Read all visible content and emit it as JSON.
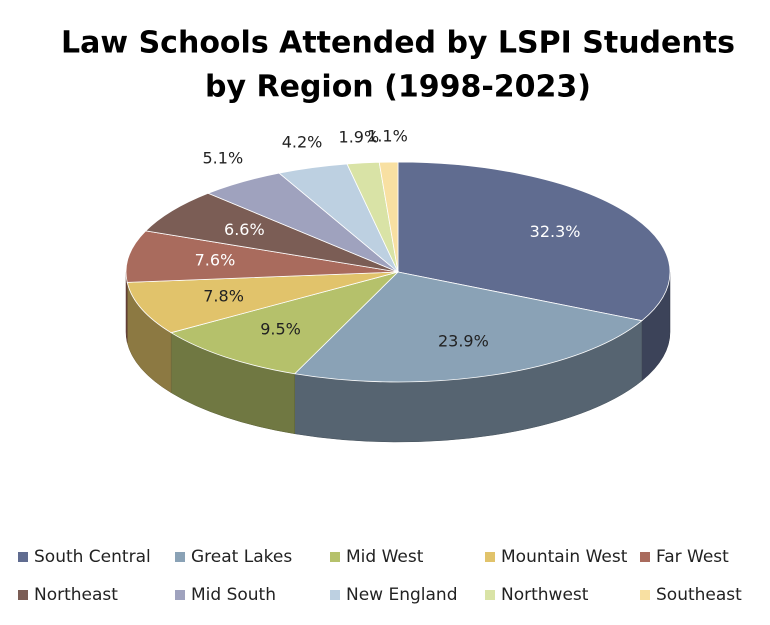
{
  "chart_data": {
    "type": "pie",
    "title": [
      "Law Schools Attended by LSPI Students",
      "by Region (1998-2023)"
    ],
    "categories": [
      "South Central",
      "Great Lakes",
      "Mid West",
      "Mountain West",
      "Far West",
      "Northeast",
      "Mid South",
      "New England",
      "Northwest",
      "Southeast"
    ],
    "values": [
      32.3,
      23.9,
      9.5,
      7.8,
      7.6,
      6.6,
      5.1,
      4.2,
      1.9,
      1.1
    ],
    "value_labels": [
      "32.3%",
      "23.9%",
      "9.5%",
      "7.8%",
      "7.6%",
      "6.6%",
      "5.1%",
      "4.2%",
      "1.9%",
      "1.1%"
    ],
    "colors": [
      "#606c90",
      "#8aa2b6",
      "#b5c16b",
      "#e1c36b",
      "#a96b5d",
      "#7b5d55",
      "#9fa2be",
      "#bdd0e1",
      "#d9e3a6",
      "#f8e0a2"
    ],
    "legend": "bottom"
  }
}
